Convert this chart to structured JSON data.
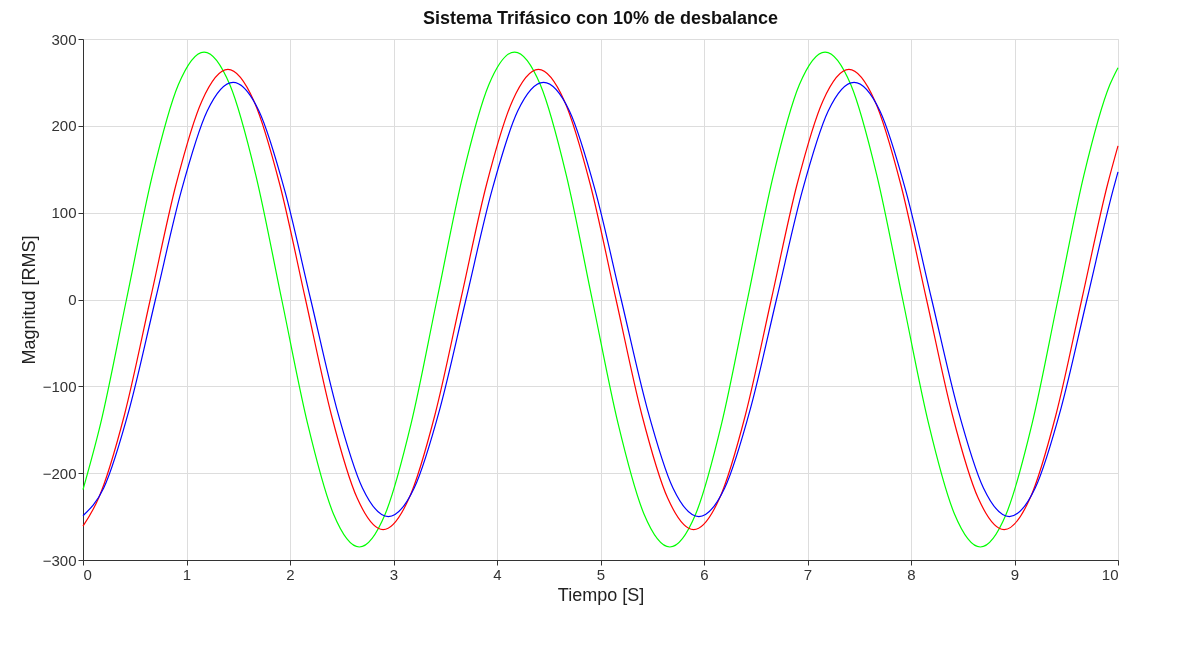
{
  "chart_data": {
    "type": "line",
    "title": "Sistema Trifásico con 10% de desbalance",
    "xlabel": "Tiempo [S]",
    "ylabel": "Magnitud [RMS]",
    "xlim": [
      0,
      10
    ],
    "xticks": [
      0,
      1,
      2,
      3,
      4,
      5,
      6,
      7,
      8,
      9,
      10
    ],
    "ylim": [
      -300,
      300
    ],
    "yticks": [
      -300,
      -200,
      -100,
      0,
      100,
      200,
      300
    ],
    "grid": true,
    "legend": false,
    "series": [
      {
        "color": "#00ff00",
        "x": [
          0,
          0.17,
          0.42,
          0.67,
          0.92,
          1.17,
          1.42,
          1.67,
          1.92,
          2.17,
          2.42,
          2.67,
          2.92,
          3.17,
          3.42,
          3.67,
          3.92,
          4.17,
          4.42,
          4.67,
          4.92,
          5.17,
          5.42,
          5.67,
          5.92,
          6.17,
          6.42,
          6.67,
          6.92,
          7.17,
          7.42,
          7.67,
          7.92,
          8.17,
          8.42,
          8.67,
          8.92,
          9.17,
          9.42,
          9.67,
          9.92,
          10
        ],
        "values": [
          -219,
          -143,
          0,
          143,
          247,
          285,
          247,
          143,
          0,
          -143,
          -247,
          -285,
          -247,
          -143,
          0,
          143,
          247,
          285,
          247,
          143,
          0,
          -143,
          -247,
          -285,
          -247,
          -143,
          0,
          143,
          247,
          285,
          247,
          143,
          0,
          -143,
          -247,
          -285,
          -247,
          -143,
          0,
          143,
          247,
          267
        ]
      },
      {
        "color": "#ff0000",
        "x": [
          0,
          0.15,
          0.4,
          0.65,
          0.9,
          1.15,
          1.4,
          1.65,
          1.9,
          2.15,
          2.4,
          2.65,
          2.9,
          3.15,
          3.4,
          3.65,
          3.9,
          4.15,
          4.4,
          4.65,
          4.9,
          5.15,
          5.4,
          5.65,
          5.9,
          6.15,
          6.4,
          6.65,
          6.9,
          7.15,
          7.4,
          7.65,
          7.9,
          8.15,
          8.4,
          8.65,
          8.9,
          9.15,
          9.4,
          9.65,
          9.9,
          10
        ],
        "values": [
          -261,
          -229,
          -133,
          0,
          133,
          229,
          265,
          229,
          133,
          0,
          -133,
          -229,
          -265,
          -229,
          -133,
          0,
          133,
          229,
          265,
          229,
          133,
          0,
          -133,
          -229,
          -265,
          -229,
          -133,
          0,
          133,
          229,
          265,
          229,
          133,
          0,
          -133,
          -229,
          -265,
          -229,
          -133,
          0,
          133,
          177
        ]
      },
      {
        "color": "#0000ff",
        "x": [
          0,
          0.2,
          0.45,
          0.7,
          0.95,
          1.2,
          1.45,
          1.7,
          1.95,
          2.2,
          2.45,
          2.7,
          2.95,
          3.2,
          3.45,
          3.7,
          3.95,
          4.2,
          4.45,
          4.7,
          4.95,
          5.2,
          5.45,
          5.7,
          5.95,
          6.2,
          6.45,
          6.7,
          6.95,
          7.2,
          7.45,
          7.7,
          7.95,
          8.2,
          8.45,
          8.7,
          8.95,
          9.2,
          9.45,
          9.7,
          9.95,
          10
        ],
        "values": [
          -249,
          -217,
          -125,
          0,
          125,
          217,
          250,
          217,
          125,
          0,
          -125,
          -217,
          -250,
          -217,
          -125,
          0,
          125,
          217,
          250,
          217,
          125,
          0,
          -125,
          -217,
          -250,
          -217,
          -125,
          0,
          125,
          217,
          250,
          217,
          125,
          0,
          -125,
          -217,
          -250,
          -217,
          -125,
          0,
          125,
          147
        ]
      }
    ]
  }
}
